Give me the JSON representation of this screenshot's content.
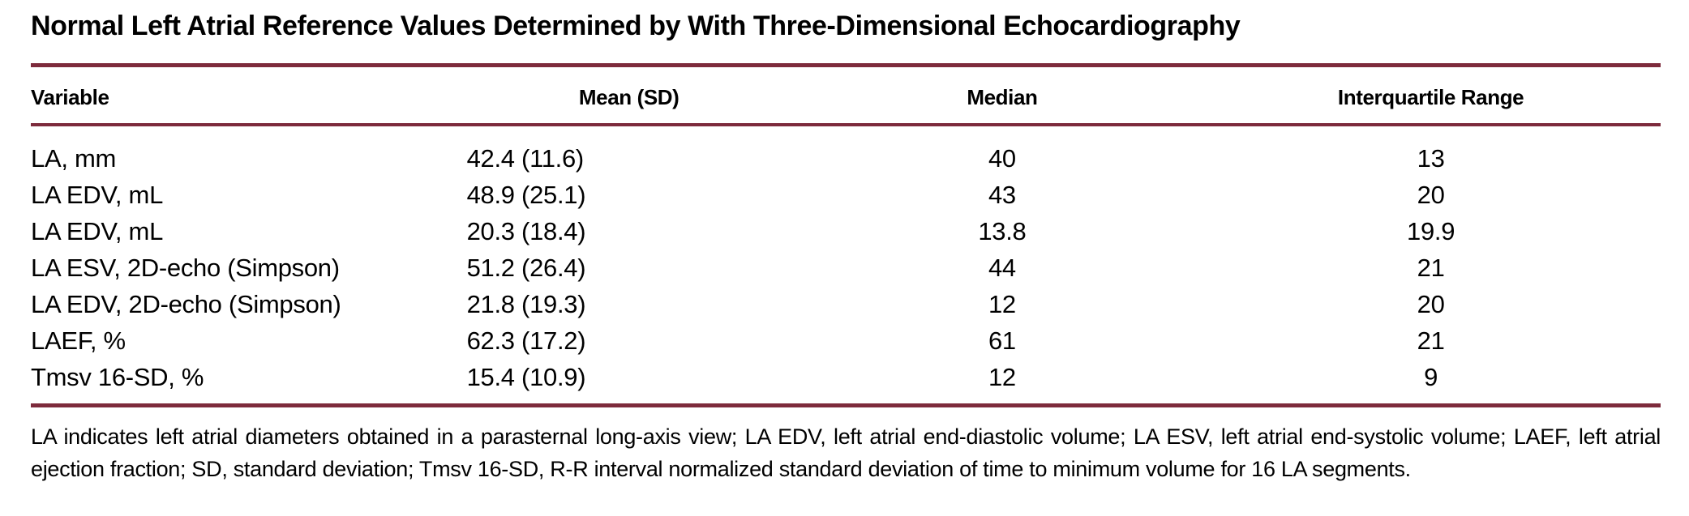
{
  "colors": {
    "rule_maroon": "#7d2b3c",
    "text": "#000000",
    "background": "#ffffff"
  },
  "table": {
    "title": "Normal Left Atrial Reference Values Determined by With Three-Dimensional Echocardiography",
    "headers": {
      "variable": "Variable",
      "mean_sd": "Mean (SD)",
      "median": "Median",
      "iqr": "Interquartile Range"
    },
    "rows": [
      {
        "variable": "LA, mm",
        "mean_sd": "42.4 (11.6)",
        "median": "40",
        "iqr": "13"
      },
      {
        "variable": "LA EDV, mL",
        "mean_sd": "48.9 (25.1)",
        "median": "43",
        "iqr": "20"
      },
      {
        "variable": "LA EDV, mL",
        "mean_sd": "20.3 (18.4)",
        "median": "13.8",
        "iqr": "19.9"
      },
      {
        "variable": "LA ESV, 2D-echo (Simpson)",
        "mean_sd": "51.2 (26.4)",
        "median": "44",
        "iqr": "21"
      },
      {
        "variable": "LA EDV, 2D-echo (Simpson)",
        "mean_sd": "21.8 (19.3)",
        "median": "12",
        "iqr": "20"
      },
      {
        "variable": "LAEF, %",
        "mean_sd": "62.3 (17.2)",
        "median": "61",
        "iqr": "21"
      },
      {
        "variable": "Tmsv 16-SD, %",
        "mean_sd": "15.4 (10.9)",
        "median": "12",
        "iqr": "9"
      }
    ],
    "footnote": "LA indicates left atrial diameters obtained in a parasternal long-axis view; LA EDV, left atrial end-diastolic volume; LA ESV, left atrial end-systolic volume; LAEF, left atrial ejection fraction; SD, standard deviation; Tmsv 16-SD, R-R interval normalized standard deviation of time to minimum volume for 16 LA segments."
  }
}
